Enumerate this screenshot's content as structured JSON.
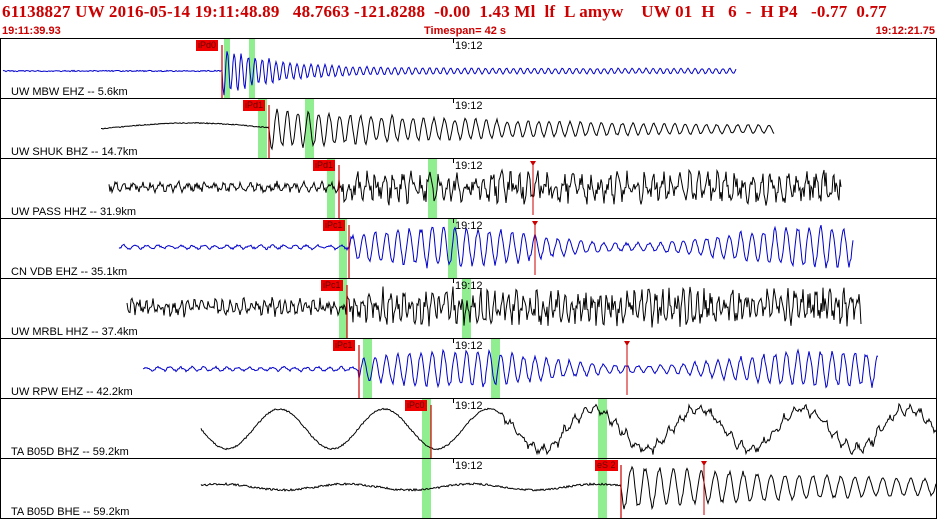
{
  "header": {
    "title": "61138827 UW 2016-05-14 19:11:48.89   48.7663 -121.8288  -0.00  1.43 Ml  lf  L amyw    UW 01  H   6  -  H P4   -0.77  0.77",
    "start_time": "19:11:39.93",
    "timespan": "Timespan=  42 s",
    "end_time": "19:12:21.75"
  },
  "minute_label": "19:12",
  "colors": {
    "header_text": "#cc0000",
    "trace_blue": "#0000cc",
    "trace_black": "#000000",
    "pick_line": "#cc0000",
    "pick_tag_bg": "#ee0000",
    "window_green": "#90ee90"
  },
  "panels": [
    {
      "label": "UW MBW EHZ -- 5.6km",
      "color": "blue",
      "pick": "iPd0",
      "shape": "local"
    },
    {
      "label": "UW SHUK BHZ -- 14.7km",
      "color": "black",
      "pick": "iPd1",
      "shape": "drift"
    },
    {
      "label": "UW PASS HHZ -- 31.9km",
      "color": "black",
      "pick": "iPd1",
      "shape": "noisy"
    },
    {
      "label": "CN VDB EHZ -- 35.1km",
      "color": "blue",
      "pick": "iPc1",
      "shape": "regional"
    },
    {
      "label": "UW MRBL HHZ -- 37.4km",
      "color": "black",
      "pick": "iPc1",
      "shape": "noisy2"
    },
    {
      "label": "UW RPW EHZ -- 42.2km",
      "color": "blue",
      "pick": "iPc1",
      "shape": "regional2"
    },
    {
      "label": "TA B05D BHZ -- 59.2km",
      "color": "black",
      "pick": "iPc0",
      "shape": "longperiod"
    },
    {
      "label": "TA B05D BHE -- 59.2km",
      "color": "black",
      "pick": "eS 2",
      "shape": "shear"
    }
  ]
}
